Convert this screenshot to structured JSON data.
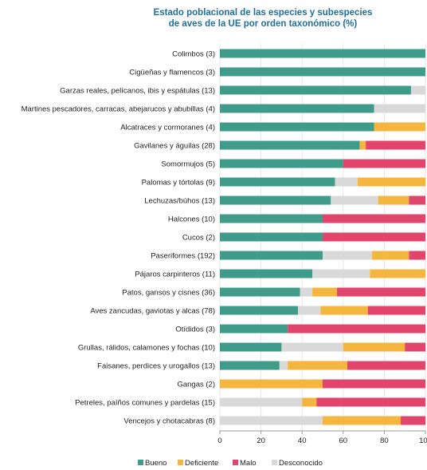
{
  "chart_data": {
    "type": "bar",
    "orientation": "horizontal",
    "stacked": true,
    "title": [
      "Estado poblacional de las especies y subespecies",
      "de aves de la UE por orden taxonómico (%)"
    ],
    "xlim": [
      0,
      100
    ],
    "xticks": [
      "0",
      "20",
      "40",
      "60",
      "80",
      "100"
    ],
    "grid": true,
    "legend_position": "bottom",
    "categories": [
      "Colimbos (3)",
      "Cigüeñas y flamencos (3)",
      "Garzas reales, pelícanos, ibis y espátulas (13)",
      "Martines pescadores, carracas, abejarucos y abubillas (4)",
      "Alcatraces y cormoranes (4)",
      "Gavilanes y águilas (28)",
      "Somormujos (5)",
      "Palomas y tórtolas (9)",
      "Lechuzas/búhos (13)",
      "Halcones (10)",
      "Cucos (2)",
      "Paseriformes (192)",
      "Pájaros carpinteros (11)",
      "Patos, gansos y cisnes (36)",
      "Aves zancudas, gaviotas y alcas (78)",
      "Otídidos (3)",
      "Grullas, rálidos, calamones y fochas (10)",
      "Faisanes, perdices y urogallos (13)",
      "Gangas (2)",
      "Petreles, paíños comunes y pardelas (15)",
      "Vencejos y chotacabras (8)"
    ],
    "series": [
      {
        "name": "Bueno",
        "color": "#3f9c8a",
        "values": [
          100,
          100,
          93,
          75,
          75,
          68,
          60,
          56,
          54,
          50,
          50,
          50,
          45,
          39,
          38,
          33,
          30,
          29,
          0,
          0,
          0
        ]
      },
      {
        "name": "Deficiente",
        "color": "#f4b63f",
        "values": [
          0,
          0,
          0,
          0,
          25,
          3,
          0,
          33,
          15,
          0,
          0,
          18,
          27,
          12,
          23,
          0,
          30,
          29,
          50,
          7,
          38
        ]
      },
      {
        "name": "Malo",
        "color": "#e2456b",
        "values": [
          0,
          0,
          0,
          0,
          0,
          29,
          40,
          0,
          8,
          50,
          50,
          8,
          0,
          43,
          28,
          67,
          10,
          38,
          50,
          53,
          12
        ]
      },
      {
        "name": "Desconocido",
        "color": "#d9d9d9",
        "values": [
          0,
          0,
          7,
          25,
          0,
          0,
          0,
          11,
          23,
          0,
          0,
          24,
          28,
          6,
          11,
          0,
          30,
          4,
          0,
          40,
          50
        ]
      }
    ],
    "series_order": [
      "Bueno",
      "Deficiente",
      "Malo",
      "Desconocido"
    ],
    "bar_order_left_to_right": [
      "Bueno",
      "Desconocido",
      "Deficiente",
      "Malo"
    ]
  }
}
